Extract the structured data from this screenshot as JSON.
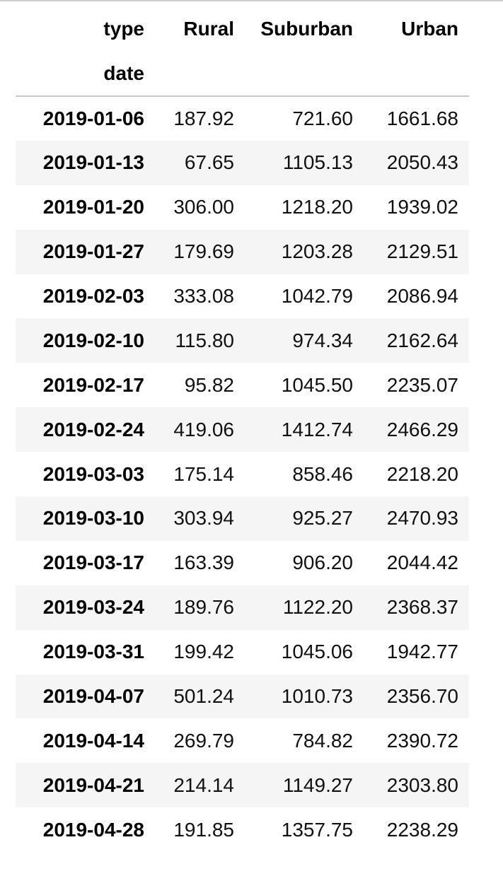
{
  "table": {
    "columns_index_name": "type",
    "row_index_name": "date",
    "columns": [
      "Rural",
      "Suburban",
      "Urban"
    ],
    "rows": [
      {
        "date": "2019-01-06",
        "values": [
          "187.92",
          "721.60",
          "1661.68"
        ]
      },
      {
        "date": "2019-01-13",
        "values": [
          "67.65",
          "1105.13",
          "2050.43"
        ]
      },
      {
        "date": "2019-01-20",
        "values": [
          "306.00",
          "1218.20",
          "1939.02"
        ]
      },
      {
        "date": "2019-01-27",
        "values": [
          "179.69",
          "1203.28",
          "2129.51"
        ]
      },
      {
        "date": "2019-02-03",
        "values": [
          "333.08",
          "1042.79",
          "2086.94"
        ]
      },
      {
        "date": "2019-02-10",
        "values": [
          "115.80",
          "974.34",
          "2162.64"
        ]
      },
      {
        "date": "2019-02-17",
        "values": [
          "95.82",
          "1045.50",
          "2235.07"
        ]
      },
      {
        "date": "2019-02-24",
        "values": [
          "419.06",
          "1412.74",
          "2466.29"
        ]
      },
      {
        "date": "2019-03-03",
        "values": [
          "175.14",
          "858.46",
          "2218.20"
        ]
      },
      {
        "date": "2019-03-10",
        "values": [
          "303.94",
          "925.27",
          "2470.93"
        ]
      },
      {
        "date": "2019-03-17",
        "values": [
          "163.39",
          "906.20",
          "2044.42"
        ]
      },
      {
        "date": "2019-03-24",
        "values": [
          "189.76",
          "1122.20",
          "2368.37"
        ]
      },
      {
        "date": "2019-03-31",
        "values": [
          "199.42",
          "1045.06",
          "1942.77"
        ]
      },
      {
        "date": "2019-04-07",
        "values": [
          "501.24",
          "1010.73",
          "2356.70"
        ]
      },
      {
        "date": "2019-04-14",
        "values": [
          "269.79",
          "784.82",
          "2390.72"
        ]
      },
      {
        "date": "2019-04-21",
        "values": [
          "214.14",
          "1149.27",
          "2303.80"
        ]
      },
      {
        "date": "2019-04-28",
        "values": [
          "191.85",
          "1357.75",
          "2238.29"
        ]
      }
    ]
  }
}
